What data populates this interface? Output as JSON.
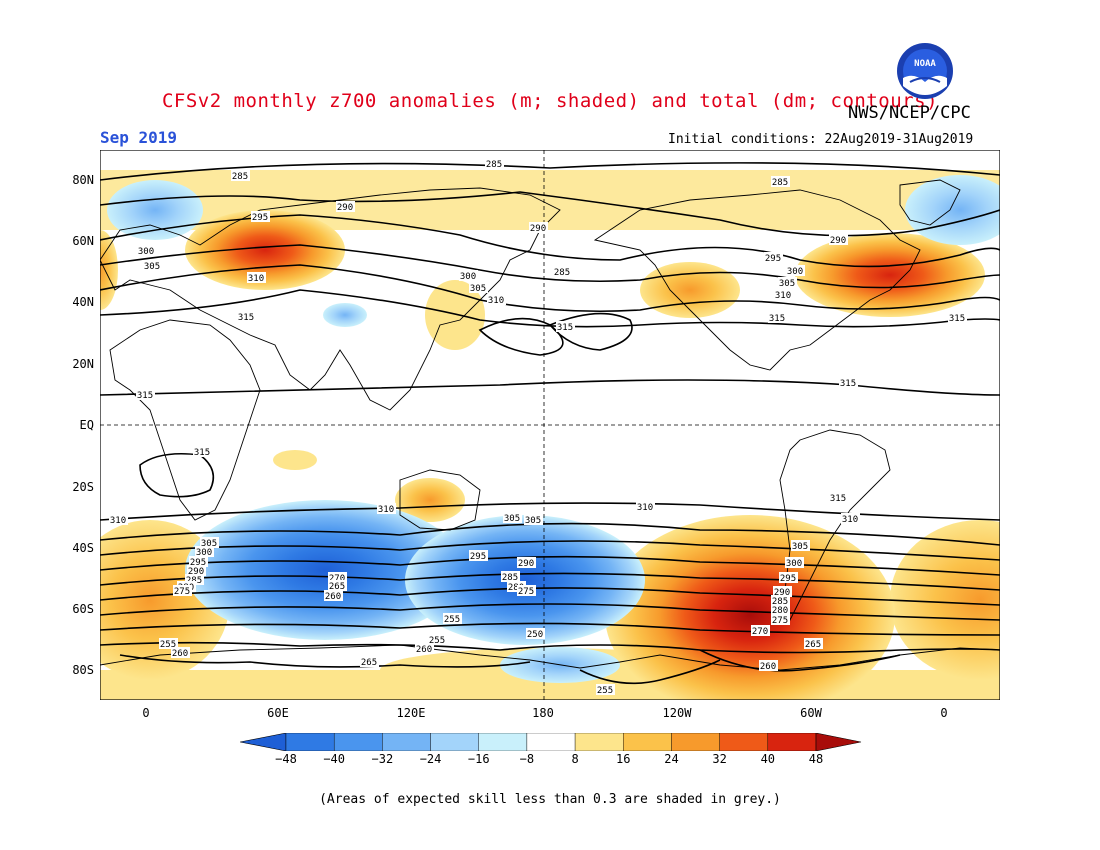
{
  "title": "CFSv2 monthly z700 anomalies (m; shaded) and total (dm; contours)",
  "agency": "NWS/NCEP/CPC",
  "logo_text": "NOAA",
  "month_label": "Sep 2019",
  "initial_conditions": "Initial conditions: 22Aug2019-31Aug2019",
  "footnote": "(Areas of expected skill less than 0.3 are shaded in grey.)",
  "colors": {
    "coast": "#000000",
    "contour": "#000000",
    "title": "#e0001a",
    "month": "#2a52d8"
  },
  "map": {
    "lon_labels": [
      "0",
      "60E",
      "120E",
      "180",
      "120W",
      "60W",
      "0"
    ],
    "lat_labels": [
      "80N",
      "60N",
      "40N",
      "20N",
      "EQ",
      "20S",
      "40S",
      "60S",
      "80S"
    ]
  },
  "colorbar": {
    "labels": [
      "-48",
      "-40",
      "-32",
      "-24",
      "-16",
      "-8",
      "8",
      "16",
      "24",
      "32",
      "40",
      "48"
    ],
    "colors": [
      "#1e5fd6",
      "#2f7ae4",
      "#4a95ee",
      "#74b4f5",
      "#a3d4fa",
      "#c9f0fb",
      "#ffffff",
      "#fde58c",
      "#fbc24a",
      "#f79a2c",
      "#ef5a18",
      "#d8240f",
      "#a80d0a"
    ]
  },
  "contour_labels": [
    {
      "text": "285"
    },
    {
      "text": "285"
    },
    {
      "text": "290"
    },
    {
      "text": "295"
    },
    {
      "text": "300"
    },
    {
      "text": "305"
    },
    {
      "text": "310"
    },
    {
      "text": "315"
    },
    {
      "text": "315"
    },
    {
      "text": "315"
    },
    {
      "text": "300"
    },
    {
      "text": "305"
    },
    {
      "text": "310"
    },
    {
      "text": "290"
    },
    {
      "text": "285"
    },
    {
      "text": "315"
    },
    {
      "text": "285"
    },
    {
      "text": "290"
    },
    {
      "text": "295"
    },
    {
      "text": "300"
    },
    {
      "text": "305"
    },
    {
      "text": "310"
    },
    {
      "text": "315"
    },
    {
      "text": "315"
    },
    {
      "text": "315"
    },
    {
      "text": "310"
    },
    {
      "text": "310"
    },
    {
      "text": "310"
    },
    {
      "text": "310"
    },
    {
      "text": "315"
    },
    {
      "text": "305"
    },
    {
      "text": "300"
    },
    {
      "text": "295"
    },
    {
      "text": "290"
    },
    {
      "text": "285"
    },
    {
      "text": "280"
    },
    {
      "text": "275"
    },
    {
      "text": "270"
    },
    {
      "text": "265"
    },
    {
      "text": "260"
    },
    {
      "text": "305"
    },
    {
      "text": "295"
    },
    {
      "text": "290"
    },
    {
      "text": "285"
    },
    {
      "text": "280"
    },
    {
      "text": "275"
    },
    {
      "text": "305"
    },
    {
      "text": "300"
    },
    {
      "text": "295"
    },
    {
      "text": "290"
    },
    {
      "text": "285"
    },
    {
      "text": "280"
    },
    {
      "text": "275"
    },
    {
      "text": "270"
    },
    {
      "text": "265"
    },
    {
      "text": "260"
    },
    {
      "text": "255"
    },
    {
      "text": "260"
    },
    {
      "text": "255"
    },
    {
      "text": "255"
    },
    {
      "text": "260"
    },
    {
      "text": "250"
    },
    {
      "text": "265"
    },
    {
      "text": "255"
    },
    {
      "text": "305"
    }
  ]
}
